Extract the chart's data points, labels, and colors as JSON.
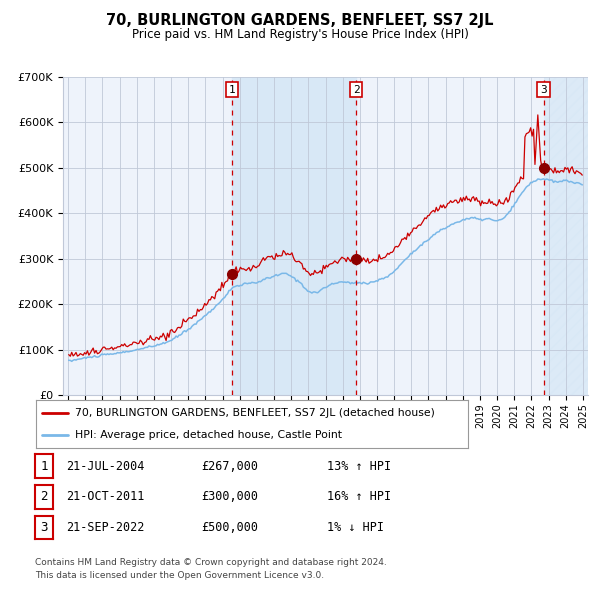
{
  "title": "70, BURLINGTON GARDENS, BENFLEET, SS7 2JL",
  "subtitle": "Price paid vs. HM Land Registry's House Price Index (HPI)",
  "ylim": [
    0,
    700000
  ],
  "yticks": [
    0,
    100000,
    200000,
    300000,
    400000,
    500000,
    600000,
    700000
  ],
  "ytick_labels": [
    "£0",
    "£100K",
    "£200K",
    "£300K",
    "£400K",
    "£500K",
    "£600K",
    "£700K"
  ],
  "sale_prices": [
    267000,
    300000,
    500000
  ],
  "sale_labels": [
    "1",
    "2",
    "3"
  ],
  "sale_decimal": [
    2004.547,
    2011.789,
    2022.714
  ],
  "hpi_color": "#7ab8e8",
  "price_color": "#cc0000",
  "background_color": "#ffffff",
  "plot_bg_color": "#eef3fb",
  "shade_bg_color": "#d8e8f6",
  "grid_color": "#c0c8d8",
  "dashed_line_color": "#cc0000",
  "legend_label_red": "70, BURLINGTON GARDENS, BENFLEET, SS7 2JL (detached house)",
  "legend_label_blue": "HPI: Average price, detached house, Castle Point",
  "table_rows": [
    {
      "num": "1",
      "date": "21-JUL-2004",
      "price": "£267,000",
      "hpi": "13% ↑ HPI"
    },
    {
      "num": "2",
      "date": "21-OCT-2011",
      "price": "£300,000",
      "hpi": "16% ↑ HPI"
    },
    {
      "num": "3",
      "date": "21-SEP-2022",
      "price": "£500,000",
      "hpi": "1% ↓ HPI"
    }
  ],
  "footnote": "Contains HM Land Registry data © Crown copyright and database right 2024.\nThis data is licensed under the Open Government Licence v3.0.",
  "xmin": 1994.7,
  "xmax": 2025.3
}
